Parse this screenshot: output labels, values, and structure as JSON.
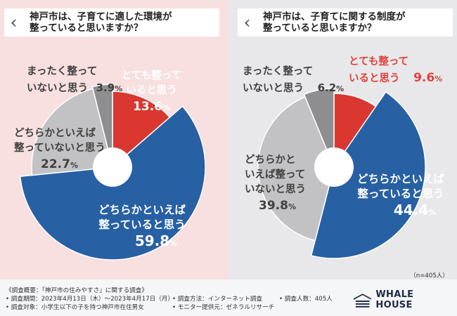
{
  "colors": {
    "red": "#d9372f",
    "blue": "#2760a3",
    "lightgray": "#c2c2c4",
    "darkgray": "#8e8e90"
  },
  "questions": [
    {
      "line1": "神戸市は、子育てに適した環境が",
      "line2": "整っていると思いますか？"
    },
    {
      "line1": "神戸市は、子育てに関する制度が",
      "line2": "整っていると思いますか？"
    }
  ],
  "chart_data": [
    {
      "type": "pie",
      "title": "神戸市は、子育てに適した環境が整っていると思いますか？",
      "categories": [
        "とても整っていると思う",
        "どちらかといえば整っていると思う",
        "どちらかといえば整っていないと思う",
        "まったく整っていないと思う"
      ],
      "values": [
        13.6,
        59.8,
        22.7,
        3.9
      ],
      "labels": [
        {
          "line1": "とても整って",
          "line2": "いると思う",
          "value": "13.6",
          "unit": "%"
        },
        {
          "line1": "どちらかといえば",
          "line2": "整っていると思う",
          "value": "59.8",
          "unit": "%"
        },
        {
          "line1": "どちらかといえば",
          "line2": "整っていないと思う",
          "value": "22.7",
          "unit": "%"
        },
        {
          "line1": "まったく整って",
          "line2": "いないと思う",
          "value": "3.9",
          "unit": "%"
        }
      ]
    },
    {
      "type": "pie",
      "title": "神戸市は、子育てに関する制度が整っていると思いますか？",
      "categories": [
        "とても整っていると思う",
        "どちらかといえば整っていると思う",
        "どちらかといえば整っていないと思う",
        "まったく整っていないと思う"
      ],
      "values": [
        9.6,
        44.4,
        39.8,
        6.2
      ],
      "labels": [
        {
          "line1": "とても整って",
          "line2": "いると思う",
          "value": "9.6",
          "unit": "%"
        },
        {
          "line1": "どちらかといえば",
          "line2": "整っていると思う",
          "value": "44.4",
          "unit": "%"
        },
        {
          "line1": "どちらかと",
          "line2": "いえば整って",
          "line3": "いないと思う",
          "value": "39.8",
          "unit": "%"
        },
        {
          "line1": "まったく整って",
          "line2": "いないと思う",
          "value": "6.2",
          "unit": "%"
        }
      ]
    }
  ],
  "note": "（n=405人）",
  "footer": {
    "summary": "《調査概要：「神戸市の住みやすさ」に関する調査》",
    "period": "• 調査期間：2023年4月13日（木）～2023年4月17日（月）",
    "target": "• 調査対象：小学生以下の子を持つ神戸市在住男女",
    "method": "• 調査方法：インターネット調査",
    "monitor": "• モニター提供元：ゼネラルリサーチ",
    "count": "• 調査人数：405人"
  },
  "logo": {
    "text": "WHALE HOUSE",
    "icon": "whale-house-logo-icon"
  }
}
